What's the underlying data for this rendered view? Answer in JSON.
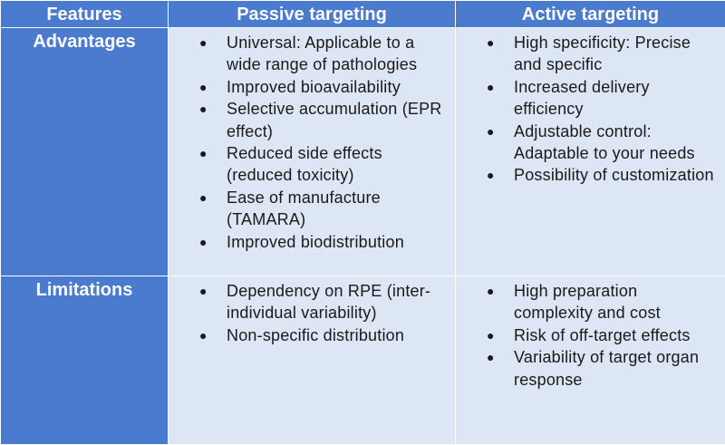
{
  "table": {
    "headers": [
      "Features",
      "Passive targeting",
      "Active targeting"
    ],
    "rows": [
      {
        "label": "Advantages",
        "passive": [
          "Universal: Applicable to a wide range of pathologies",
          "Improved bioavailability",
          "Selective accumulation (EPR effect)",
          "Reduced side effects (reduced toxicity)",
          "Ease of manufacture (TAMARA)",
          "Improved biodistribution"
        ],
        "active": [
          "High specificity: Precise and specific",
          "Increased delivery efficiency",
          "Adjustable control: Adaptable to your needs",
          "Possibility of customization"
        ]
      },
      {
        "label": "Limitations",
        "passive": [
          "Dependency on RPE (inter-individual variability)",
          "Non-specific distribution"
        ],
        "active": [
          "High preparation complexity and cost",
          "Risk of off-target effects",
          "Variability of target organ response"
        ]
      }
    ]
  },
  "colors": {
    "header_bg": "#4a7bcf",
    "cell_bg": "#dce6f4",
    "header_text": "#ffffff",
    "body_text": "#1a1a1a"
  }
}
